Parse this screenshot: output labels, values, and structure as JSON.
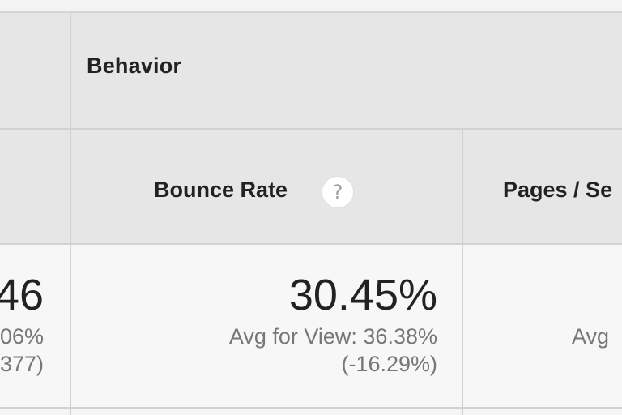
{
  "header": {
    "group_title": "Behavior",
    "columns": [
      {
        "label": "Bounce Rate",
        "help_icon": "question-circle-icon"
      },
      {
        "label": "Pages / Se"
      }
    ]
  },
  "rows": {
    "left_partial": {
      "value": "46",
      "avg_line": "06%",
      "delta_line": "377)"
    },
    "bounce_rate": {
      "value": "30.45%",
      "avg_line": "Avg for View: 36.38%",
      "delta_line": "(-16.29%)"
    },
    "pages_per_session": {
      "avg_line": "Avg"
    }
  },
  "help_glyph": "?",
  "colors": {
    "header_bg": "#e6e6e6",
    "body_bg": "#f7f7f7",
    "border": "#d2d2d2",
    "text_primary": "#222222",
    "text_secondary": "#777777"
  }
}
